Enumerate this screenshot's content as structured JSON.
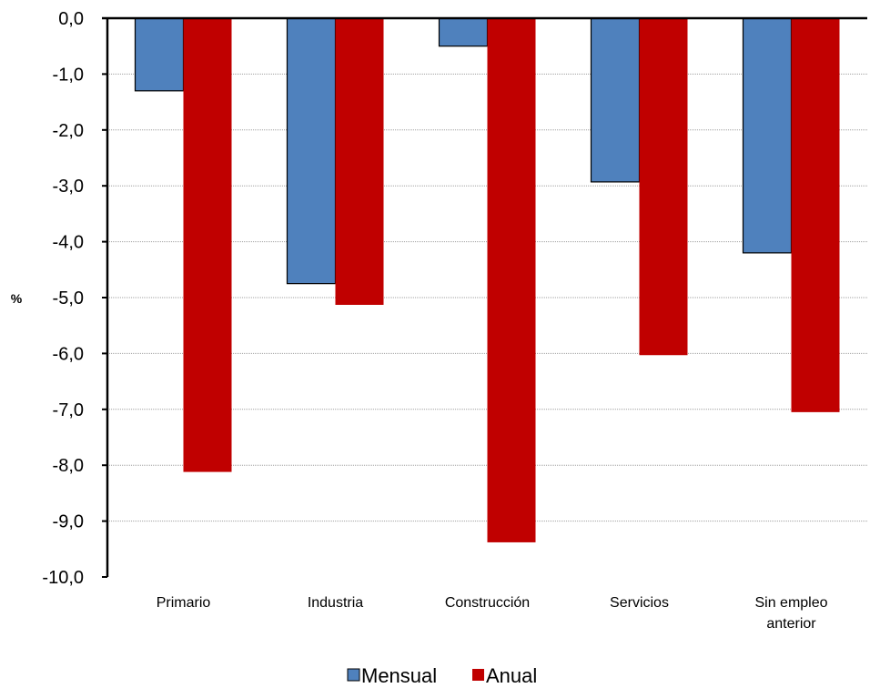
{
  "chart_data": {
    "type": "bar",
    "title": "",
    "xlabel": "",
    "ylabel": "%",
    "ylim": [
      -10,
      0
    ],
    "yticks": [
      "0,0",
      "-1,0",
      "-2,0",
      "-3,0",
      "-4,0",
      "-5,0",
      "-6,0",
      "-7,0",
      "-8,0",
      "-9,0",
      "-10,0"
    ],
    "categories": [
      [
        "Primario"
      ],
      [
        "Industria"
      ],
      [
        "Construcción"
      ],
      [
        "Servicios"
      ],
      [
        "Sin empleo",
        "anterior"
      ]
    ],
    "series": [
      {
        "name": "Mensual",
        "color": "#4F81BD",
        "values": [
          -1.3,
          -4.75,
          -0.5,
          -2.93,
          -4.2
        ]
      },
      {
        "name": "Anual",
        "color": "#C00000",
        "values": [
          -8.12,
          -5.13,
          -9.38,
          -6.03,
          -7.05
        ]
      }
    ],
    "grid": true,
    "legend_position": "bottom-center"
  }
}
